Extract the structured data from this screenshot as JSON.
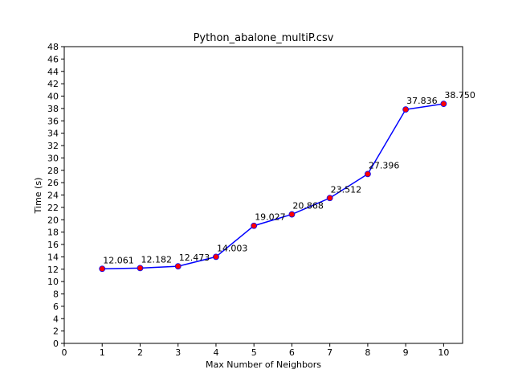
{
  "chart_data": {
    "type": "line",
    "title": "Python_abalone_multiP.csv",
    "xlabel": "Max Number of Neighbors",
    "ylabel": "Time (s)",
    "xlim": [
      0,
      10.5
    ],
    "ylim": [
      0,
      48
    ],
    "xticks": [
      0,
      1,
      2,
      3,
      4,
      5,
      6,
      7,
      8,
      9,
      10
    ],
    "yticks": [
      0,
      2,
      4,
      6,
      8,
      10,
      12,
      14,
      16,
      18,
      20,
      22,
      24,
      26,
      28,
      30,
      32,
      34,
      36,
      38,
      40,
      42,
      44,
      46,
      48
    ],
    "grid": false,
    "line_color": "#0000ff",
    "marker_color": "#ff0000",
    "x": [
      1,
      2,
      3,
      4,
      5,
      6,
      7,
      8,
      9,
      10
    ],
    "y": [
      12.061,
      12.182,
      12.473,
      14.003,
      19.027,
      20.868,
      23.512,
      27.396,
      37.836,
      38.75
    ],
    "labels": [
      "12.061",
      "12.182",
      "12.473",
      "14.003",
      "19.027",
      "20.868",
      "23.512",
      "27.396",
      "37.836",
      "38.750"
    ]
  }
}
